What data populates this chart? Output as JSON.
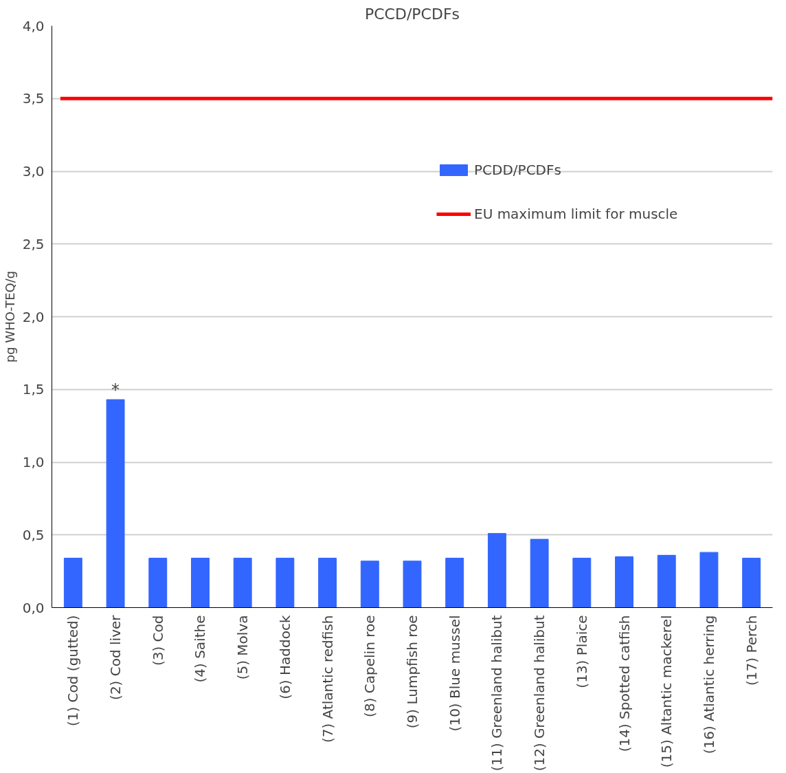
{
  "chart_data": {
    "type": "bar",
    "title": "PCCD/PCDFs",
    "ylabel": "pg WHO-TEQ/g",
    "categories": [
      "(1) Cod (gutted)",
      "(2) Cod liver",
      "(3) Cod",
      "(4) Saithe",
      "(5) Molva",
      "(6) Haddock",
      "(7) Atlantic redfish",
      "(8) Capelin roe",
      "(9) Lumpfish roe",
      "(10) Blue mussel",
      "(11) Greenland halibut",
      "(12) Greenland halibut",
      "(13) Plaice",
      "(14) Spotted catfish",
      "(15) Altantic mackerel",
      "(16) Atlantic herring",
      "(17) Perch"
    ],
    "series": [
      {
        "name": "PCDD/PCDFs",
        "color": "#3366ff",
        "values": [
          0.34,
          1.43,
          0.34,
          0.34,
          0.34,
          0.34,
          0.34,
          0.32,
          0.32,
          0.34,
          0.51,
          0.47,
          0.34,
          0.35,
          0.36,
          0.38,
          0.34
        ]
      }
    ],
    "ylim": [
      0,
      4
    ],
    "yticks": [
      {
        "value": 0,
        "label": "0,0"
      },
      {
        "value": 0.5,
        "label": "0,5"
      },
      {
        "value": 1,
        "label": "1,0"
      },
      {
        "value": 1.5,
        "label": "1,5"
      },
      {
        "value": 2,
        "label": "2,0"
      },
      {
        "value": 2.5,
        "label": "2,5"
      },
      {
        "value": 3,
        "label": "3,0"
      },
      {
        "value": 3.5,
        "label": "3,5"
      },
      {
        "value": 4,
        "label": "4,0"
      }
    ],
    "ref_lines": [
      {
        "axis": "y",
        "value": 3.5,
        "label": "EU maximum limit for muscle",
        "color": "#ff0000"
      }
    ],
    "annotations": [
      {
        "text": "*",
        "x": "(2) Cod liver",
        "y": 1.43
      }
    ],
    "grid": "y",
    "legend": "top right"
  }
}
